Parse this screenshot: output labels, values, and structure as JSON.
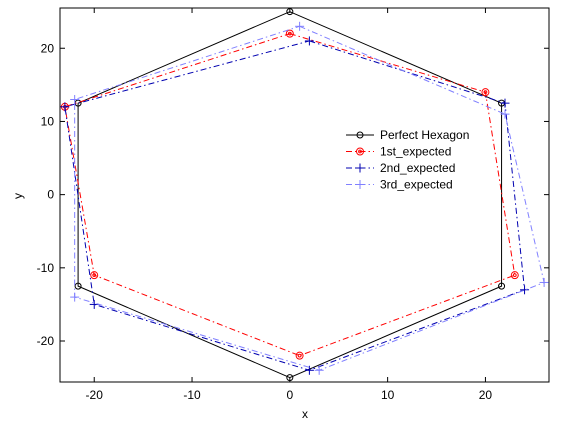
{
  "chart_data": {
    "type": "line",
    "title": "",
    "xlabel": "x",
    "ylabel": "y",
    "xlim": [
      -23.5,
      26.5
    ],
    "ylim": [
      -25.6,
      25.5
    ],
    "xticks": [
      -20,
      -10,
      0,
      10,
      20
    ],
    "yticks": [
      -20,
      -10,
      0,
      10,
      20
    ],
    "xtick_labels": [
      "-20",
      "-10",
      "0",
      "10",
      "20"
    ],
    "ytick_labels": [
      "-20",
      "-10",
      "0",
      "10",
      "20"
    ],
    "grid": false,
    "legend_position": "right-center",
    "series": [
      {
        "name": "Perfect Hexagon",
        "color": "#000000",
        "dash": "solid",
        "marker": "circle",
        "points": [
          [
            0,
            25
          ],
          [
            21.65,
            12.5
          ],
          [
            21.65,
            -12.5
          ],
          [
            0,
            -25
          ],
          [
            -21.65,
            -12.5
          ],
          [
            -21.65,
            12.5
          ],
          [
            0,
            25
          ]
        ]
      },
      {
        "name": "1st_expected",
        "color": "#ff0000",
        "dash": "dashdot",
        "marker": "circle-dot",
        "points": [
          [
            0,
            22
          ],
          [
            20,
            14
          ],
          [
            23,
            -11
          ],
          [
            1,
            -22
          ],
          [
            -20,
            -11
          ],
          [
            -23,
            12
          ],
          [
            0,
            22
          ]
        ]
      },
      {
        "name": "2nd_expected",
        "color": "#0000b0",
        "dash": "dashdot",
        "marker": "plus",
        "points": [
          [
            2,
            21
          ],
          [
            22,
            12.5
          ],
          [
            24,
            -13
          ],
          [
            2,
            -24
          ],
          [
            -20,
            -15
          ],
          [
            -23,
            12
          ],
          [
            2,
            21
          ]
        ]
      },
      {
        "name": "3rd_expected",
        "color": "#8080ff",
        "dash": "dashdot",
        "marker": "plus",
        "points": [
          [
            1,
            23
          ],
          [
            22,
            11
          ],
          [
            26,
            -12
          ],
          [
            3,
            -24
          ],
          [
            -22,
            -14
          ],
          [
            -22,
            13
          ],
          [
            1,
            23
          ]
        ]
      }
    ]
  }
}
